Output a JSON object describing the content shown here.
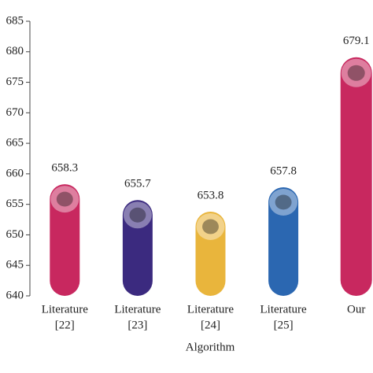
{
  "chart_data": {
    "type": "bar",
    "x_label": "Algorithm",
    "categories": [
      [
        "Literature",
        "[22]"
      ],
      [
        "Literature",
        "[23]"
      ],
      [
        "Literature",
        "[24]"
      ],
      [
        "Literature",
        "[25]"
      ],
      [
        "Our"
      ]
    ],
    "values": [
      658.3,
      655.7,
      653.8,
      657.8,
      679.1
    ],
    "colors": [
      "#c8285f",
      "#3b2a7f",
      "#e9b53c",
      "#2b67b1",
      "#c8285f"
    ],
    "ylim": [
      640,
      685
    ],
    "yticks": [
      640,
      645,
      650,
      655,
      660,
      665,
      670,
      675,
      680,
      685
    ]
  }
}
